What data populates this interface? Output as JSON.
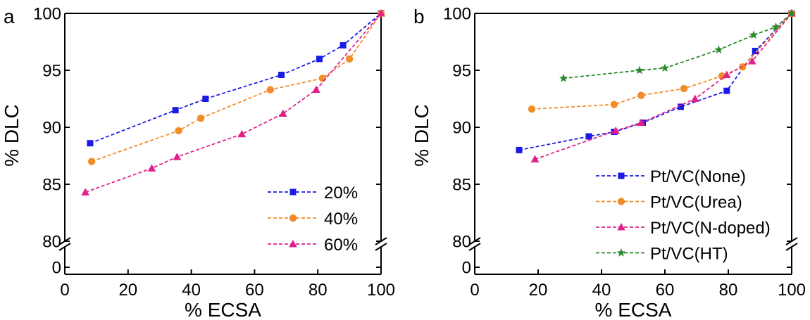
{
  "chart_data": [
    {
      "type": "line",
      "panel_label": "a",
      "xlabel": "% ECSA",
      "ylabel": "% DLC",
      "xlim": [
        0,
        100
      ],
      "ylim_upper": [
        80,
        100
      ],
      "ylim_lower": [
        0,
        1
      ],
      "axis_break": true,
      "x_ticks": [
        "0",
        "20",
        "40",
        "60",
        "80",
        "100"
      ],
      "y_ticks_upper": [
        "80",
        "85",
        "90",
        "95",
        "100"
      ],
      "y_ticks_lower": [
        "0"
      ],
      "legend_position": "bottom-right",
      "series": [
        {
          "name": "20%",
          "color": "#1a1ae6",
          "marker": "square",
          "x": [
            8,
            35,
            44.5,
            68.5,
            80.5,
            88,
            100
          ],
          "y": [
            88.6,
            91.5,
            92.5,
            94.6,
            96,
            97.2,
            100
          ]
        },
        {
          "name": "40%",
          "color": "#f28c28",
          "marker": "circle",
          "x": [
            8.5,
            36,
            43,
            65,
            81.5,
            90,
            100
          ],
          "y": [
            87,
            89.7,
            90.8,
            93.3,
            94.3,
            96,
            100
          ]
        },
        {
          "name": "60%",
          "color": "#e0218a",
          "marker": "triangle",
          "x": [
            6.5,
            27.5,
            35.5,
            56,
            69,
            79.5,
            100
          ],
          "y": [
            84.3,
            86.4,
            87.4,
            89.4,
            91.2,
            93.3,
            100
          ]
        }
      ]
    },
    {
      "type": "line",
      "panel_label": "b",
      "xlabel": "% ECSA",
      "ylabel": "% DLC",
      "xlim": [
        0,
        100
      ],
      "ylim_upper": [
        80,
        100
      ],
      "ylim_lower": [
        0,
        1
      ],
      "axis_break": true,
      "x_ticks": [
        "0",
        "20",
        "40",
        "60",
        "80",
        "100"
      ],
      "y_ticks_upper": [
        "80",
        "85",
        "90",
        "95",
        "100"
      ],
      "y_ticks_lower": [
        "0"
      ],
      "legend_position": "bottom-right",
      "series": [
        {
          "name": "Pt/VC(None)",
          "color": "#1a1ae6",
          "marker": "square",
          "x": [
            14,
            36,
            44,
            53,
            65,
            79.5,
            88.5,
            100
          ],
          "y": [
            88,
            89.2,
            89.6,
            90.4,
            91.8,
            93.2,
            96.7,
            100
          ]
        },
        {
          "name": "Pt/VC(Urea)",
          "color": "#f28c28",
          "marker": "circle",
          "x": [
            18,
            44,
            52.5,
            66,
            78,
            84.5,
            100
          ],
          "y": [
            91.6,
            92,
            92.8,
            93.4,
            94.5,
            95.3,
            100
          ]
        },
        {
          "name": "Pt/VC(N-doped)",
          "color": "#e0218a",
          "marker": "triangle",
          "x": [
            19,
            44.5,
            52.5,
            69.5,
            79.5,
            87.5,
            100
          ],
          "y": [
            87.2,
            89.7,
            90.4,
            92.5,
            94.6,
            95.8,
            100
          ]
        },
        {
          "name": "Pt/VC(HT)",
          "color": "#2a8a2a",
          "marker": "star",
          "x": [
            28,
            52,
            60,
            77,
            88,
            95,
            100
          ],
          "y": [
            94.3,
            95,
            95.2,
            96.8,
            98.1,
            98.8,
            100
          ]
        }
      ]
    }
  ]
}
